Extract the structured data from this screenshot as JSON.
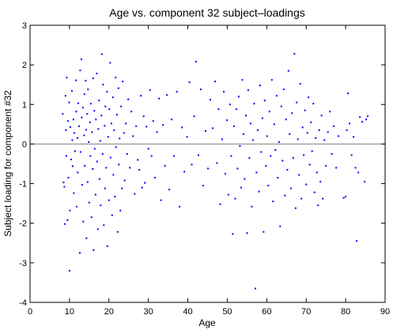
{
  "chart_data": {
    "type": "scatter",
    "title": "Age vs. component 32 subject–loadings",
    "xlabel": "Age",
    "ylabel": "Subject loading for component #32",
    "xlim": [
      0,
      90
    ],
    "ylim": [
      -4,
      3
    ],
    "xticks": [
      0,
      10,
      20,
      30,
      40,
      50,
      60,
      70,
      80,
      90
    ],
    "yticks": [
      3,
      2,
      1,
      0,
      -1,
      -2,
      -3,
      -4
    ],
    "grid": false,
    "legend": "none",
    "reference_line": {
      "y": 0,
      "color": "#808080"
    },
    "marker_color": "#0000ff",
    "points": [
      [
        8.3,
        0.76
      ],
      [
        8.5,
        -0.97
      ],
      [
        8.7,
        -1.08
      ],
      [
        8.8,
        -2.02
      ],
      [
        9.0,
        1.22
      ],
      [
        9.1,
        0.35
      ],
      [
        9.2,
        -0.3
      ],
      [
        9.3,
        1.68
      ],
      [
        9.5,
        -1.92
      ],
      [
        9.6,
        0.58
      ],
      [
        9.7,
        -0.85
      ],
      [
        9.9,
        1.05
      ],
      [
        10.0,
        -3.2
      ],
      [
        10.1,
        -1.68
      ],
      [
        10.2,
        0.43
      ],
      [
        10.4,
        -0.39
      ],
      [
        10.6,
        1.34
      ],
      [
        10.7,
        0.1
      ],
      [
        10.8,
        -0.56
      ],
      [
        11.0,
        0.62
      ],
      [
        11.1,
        -1.24
      ],
      [
        11.2,
        0.28
      ],
      [
        11.4,
        -0.18
      ],
      [
        11.6,
        1.61
      ],
      [
        11.7,
        0.82
      ],
      [
        11.8,
        -1.58
      ],
      [
        12.0,
        0.15
      ],
      [
        12.1,
        -0.72
      ],
      [
        12.2,
        1.03
      ],
      [
        12.4,
        0.45
      ],
      [
        12.6,
        -2.75
      ],
      [
        12.7,
        1.86
      ],
      [
        12.8,
        -0.2
      ],
      [
        13.0,
        2.14
      ],
      [
        13.1,
        0.67
      ],
      [
        13.2,
        -1.03
      ],
      [
        13.4,
        0.92
      ],
      [
        13.5,
        -1.96
      ],
      [
        13.7,
        0.22
      ],
      [
        13.8,
        1.26
      ],
      [
        13.9,
        -0.55
      ],
      [
        14.1,
        1.6
      ],
      [
        14.2,
        0.36
      ],
      [
        14.3,
        -2.38
      ],
      [
        14.5,
        0.76
      ],
      [
        14.6,
        -0.96
      ],
      [
        14.7,
        1.38
      ],
      [
        14.9,
        0.05
      ],
      [
        15.0,
        -1.48
      ],
      [
        15.2,
        0.55
      ],
      [
        15.3,
        -0.3
      ],
      [
        15.4,
        1.02
      ],
      [
        15.6,
        -1.85
      ],
      [
        15.7,
        0.3
      ],
      [
        15.9,
        -0.63
      ],
      [
        16.0,
        1.66
      ],
      [
        16.1,
        -2.68
      ],
      [
        16.3,
        0.84
      ],
      [
        16.4,
        -0.12
      ],
      [
        16.6,
        -1.28
      ],
      [
        16.7,
        0.62
      ],
      [
        16.9,
        1.78
      ],
      [
        17.0,
        -0.44
      ],
      [
        17.2,
        -2.15
      ],
      [
        17.3,
        0.38
      ],
      [
        17.5,
        1.1
      ],
      [
        17.6,
        -0.88
      ],
      [
        17.8,
        0.08
      ],
      [
        17.9,
        -1.55
      ],
      [
        18.1,
        0.72
      ],
      [
        18.2,
        2.27
      ],
      [
        18.4,
        -0.25
      ],
      [
        18.5,
        1.5
      ],
      [
        18.7,
        -2.05
      ],
      [
        18.9,
        0.46
      ],
      [
        19.0,
        -1.12
      ],
      [
        19.1,
        0.95
      ],
      [
        19.3,
        -0.6
      ],
      [
        19.5,
        1.32
      ],
      [
        19.6,
        -2.58
      ],
      [
        19.8,
        0.18
      ],
      [
        20.0,
        -1.42
      ],
      [
        20.1,
        0.88
      ],
      [
        20.3,
        2.05
      ],
      [
        20.4,
        -0.34
      ],
      [
        20.6,
        0.52
      ],
      [
        20.8,
        -1.8
      ],
      [
        21.0,
        1.18
      ],
      [
        21.1,
        -0.78
      ],
      [
        21.3,
        0.35
      ],
      [
        21.5,
        -1.33
      ],
      [
        21.7,
        1.68
      ],
      [
        21.8,
        -0.08
      ],
      [
        22.0,
        0.74
      ],
      [
        22.2,
        -2.22
      ],
      [
        22.4,
        1.41
      ],
      [
        22.5,
        -0.52
      ],
      [
        22.7,
        0.14
      ],
      [
        22.9,
        -1.68
      ],
      [
        23.1,
        0.95
      ],
      [
        23.3,
        -1.12
      ],
      [
        23.5,
        1.58
      ],
      [
        23.8,
        0.28
      ],
      [
        24.0,
        -0.92
      ],
      [
        24.3,
        0.52
      ],
      [
        24.6,
        -0.25
      ],
      [
        24.9,
        1.13
      ],
      [
        25.3,
        -0.6
      ],
      [
        25.7,
        0.82
      ],
      [
        26.1,
        0.2
      ],
      [
        26.5,
        -1.26
      ],
      [
        26.9,
        0.45
      ],
      [
        27.3,
        -0.4
      ],
      [
        27.7,
        -0.65
      ],
      [
        28.1,
        1.22
      ],
      [
        28.4,
        -1.1
      ],
      [
        28.8,
        0.7
      ],
      [
        29.1,
        -0.98
      ],
      [
        29.5,
        0.44
      ],
      [
        30.0,
        -0.12
      ],
      [
        30.4,
        1.36
      ],
      [
        30.8,
        -0.3
      ],
      [
        31.2,
        0.58
      ],
      [
        31.7,
        -0.85
      ],
      [
        32.2,
        0.3
      ],
      [
        32.7,
        1.15
      ],
      [
        33.2,
        -1.42
      ],
      [
        33.7,
        0.48
      ],
      [
        34.2,
        -0.55
      ],
      [
        34.7,
        1.24
      ],
      [
        35.3,
        -1.15
      ],
      [
        35.9,
        0.62
      ],
      [
        36.5,
        -0.3
      ],
      [
        37.2,
        1.32
      ],
      [
        37.9,
        -1.58
      ],
      [
        38.5,
        0.42
      ],
      [
        39.1,
        -0.7
      ],
      [
        39.8,
        0.18
      ],
      [
        40.4,
        1.56
      ],
      [
        41.0,
        -0.52
      ],
      [
        41.6,
        0.7
      ],
      [
        42.1,
        2.08
      ],
      [
        42.7,
        -0.28
      ],
      [
        43.3,
        1.38
      ],
      [
        43.9,
        -1.05
      ],
      [
        44.5,
        0.33
      ],
      [
        45.1,
        -0.62
      ],
      [
        45.7,
        1.12
      ],
      [
        46.3,
        0.4
      ],
      [
        46.9,
        1.58
      ],
      [
        47.4,
        -0.48
      ],
      [
        47.8,
        0.88
      ],
      [
        48.2,
        -1.52
      ],
      [
        48.7,
        0.12
      ],
      [
        49.1,
        1.32
      ],
      [
        49.5,
        -0.75
      ],
      [
        49.9,
        0.6
      ],
      [
        50.3,
        -1.28
      ],
      [
        50.7,
        1.0
      ],
      [
        51.0,
        -0.3
      ],
      [
        51.4,
        -2.27
      ],
      [
        51.7,
        0.45
      ],
      [
        52.0,
        -1.38
      ],
      [
        52.3,
        0.88
      ],
      [
        52.6,
        -0.62
      ],
      [
        52.9,
        1.2
      ],
      [
        53.2,
        -0.05
      ],
      [
        53.5,
        -1.1
      ],
      [
        53.8,
        1.62
      ],
      [
        54.1,
        0.25
      ],
      [
        54.4,
        -0.88
      ],
      [
        54.7,
        0.72
      ],
      [
        55.0,
        -2.25
      ],
      [
        55.3,
        1.36
      ],
      [
        55.6,
        -0.35
      ],
      [
        55.9,
        0.52
      ],
      [
        56.2,
        -1.58
      ],
      [
        56.5,
        0.1
      ],
      [
        56.8,
        1.02
      ],
      [
        57.1,
        -3.65
      ],
      [
        57.4,
        -0.72
      ],
      [
        57.7,
        0.35
      ],
      [
        58.0,
        -1.2
      ],
      [
        58.3,
        1.48
      ],
      [
        58.6,
        -0.2
      ],
      [
        58.9,
        0.65
      ],
      [
        59.2,
        -2.22
      ],
      [
        59.5,
        1.1
      ],
      [
        59.8,
        -0.55
      ],
      [
        60.1,
        0.2
      ],
      [
        60.4,
        -1.05
      ],
      [
        60.7,
        0.82
      ],
      [
        61.0,
        -0.3
      ],
      [
        61.3,
        1.62
      ],
      [
        61.6,
        -1.45
      ],
      [
        61.9,
        0.5
      ],
      [
        62.2,
        -0.15
      ],
      [
        62.5,
        1.22
      ],
      [
        62.8,
        -0.85
      ],
      [
        63.1,
        0.05
      ],
      [
        63.4,
        -2.08
      ],
      [
        63.7,
        0.95
      ],
      [
        64.0,
        -0.42
      ],
      [
        64.3,
        1.38
      ],
      [
        64.6,
        -1.3
      ],
      [
        64.9,
        0.62
      ],
      [
        65.2,
        -0.65
      ],
      [
        65.5,
        1.85
      ],
      [
        65.8,
        0.25
      ],
      [
        66.1,
        -1.12
      ],
      [
        66.4,
        0.78
      ],
      [
        66.7,
        -0.35
      ],
      [
        67.0,
        2.28
      ],
      [
        67.3,
        -1.62
      ],
      [
        67.6,
        1.05
      ],
      [
        67.9,
        0.12
      ],
      [
        68.2,
        -0.78
      ],
      [
        68.5,
        1.52
      ],
      [
        68.8,
        -1.38
      ],
      [
        69.1,
        0.42
      ],
      [
        69.4,
        -0.28
      ],
      [
        69.7,
        0.85
      ],
      [
        70.0,
        -1.02
      ],
      [
        70.3,
        0.28
      ],
      [
        70.6,
        1.18
      ],
      [
        70.9,
        -0.52
      ],
      [
        71.2,
        0.55
      ],
      [
        71.5,
        -0.18
      ],
      [
        71.8,
        1.02
      ],
      [
        72.1,
        -1.22
      ],
      [
        72.4,
        0.15
      ],
      [
        72.7,
        -0.72
      ],
      [
        73.0,
        -1.55
      ],
      [
        73.3,
        0.35
      ],
      [
        73.6,
        -0.95
      ],
      [
        73.9,
        0.72
      ],
      [
        74.2,
        -1.38
      ],
      [
        74.6,
        0.1
      ],
      [
        75.0,
        -0.55
      ],
      [
        75.5,
        0.3
      ],
      [
        76.0,
        0.82
      ],
      [
        76.5,
        -0.25
      ],
      [
        77.0,
        0.45
      ],
      [
        77.6,
        -0.6
      ],
      [
        78.2,
        0.2
      ],
      [
        79.5,
        -1.36
      ],
      [
        80.0,
        -1.33
      ],
      [
        80.3,
        0.35
      ],
      [
        80.6,
        1.28
      ],
      [
        81.0,
        0.52
      ],
      [
        81.5,
        -0.28
      ],
      [
        82.0,
        0.18
      ],
      [
        82.5,
        -0.6
      ],
      [
        82.8,
        -2.45
      ],
      [
        83.2,
        -0.72
      ],
      [
        83.6,
        0.68
      ],
      [
        84.2,
        0.56
      ],
      [
        84.8,
        -0.95
      ],
      [
        85.2,
        0.62
      ],
      [
        85.6,
        0.7
      ]
    ]
  }
}
